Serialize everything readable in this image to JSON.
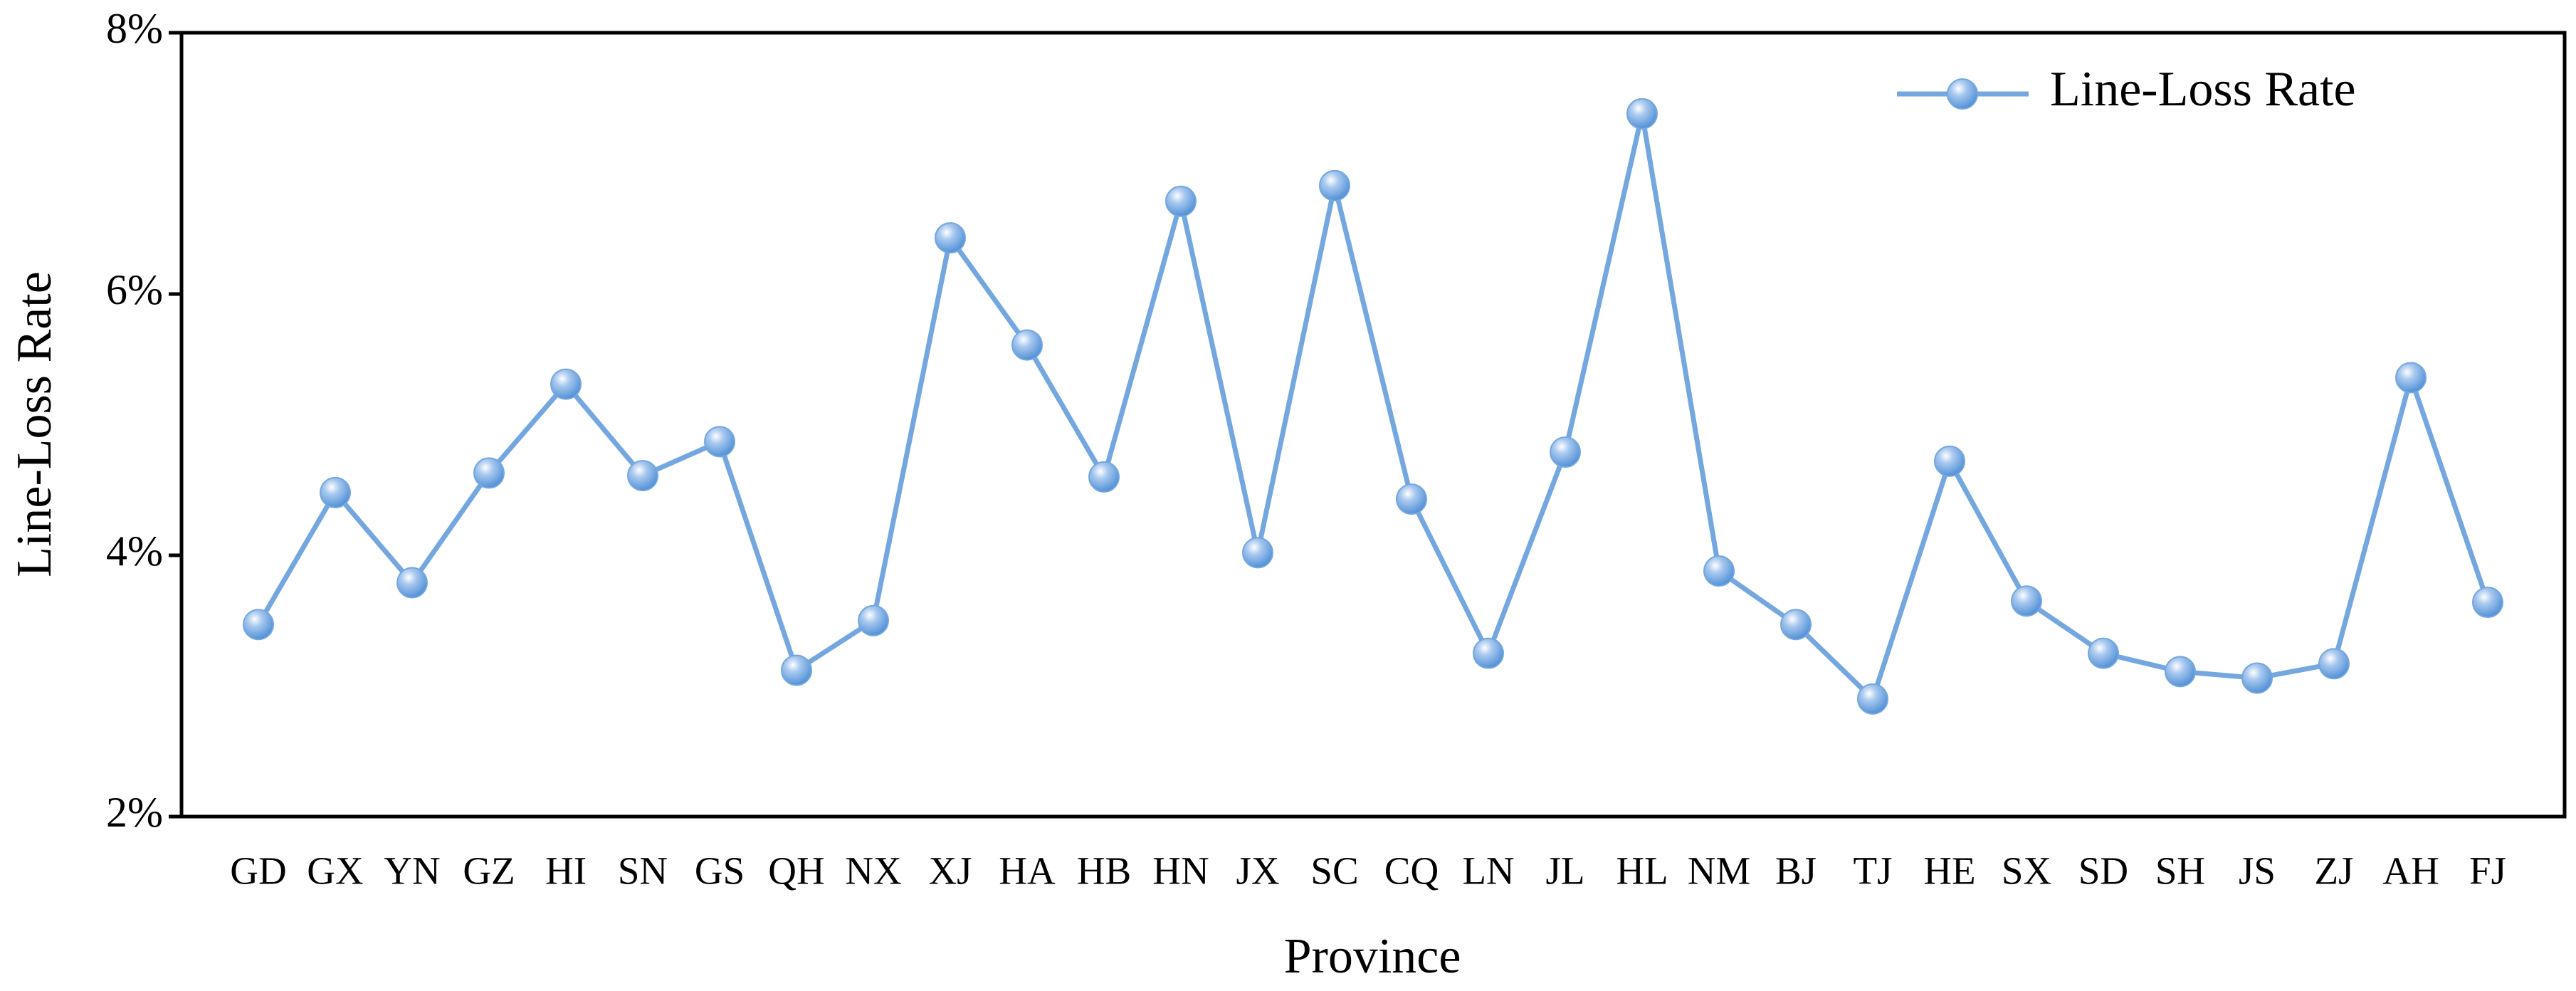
{
  "chart_data": {
    "type": "line",
    "x_label": "Province",
    "y_label": "Line-Loss Rate",
    "categories": [
      "GD",
      "GX",
      "YN",
      "GZ",
      "HI",
      "SN",
      "GS",
      "QH",
      "NX",
      "XJ",
      "HA",
      "HB",
      "HN",
      "JX",
      "SC",
      "CQ",
      "LN",
      "JL",
      "HL",
      "NM",
      "BJ",
      "TJ",
      "HE",
      "SX",
      "SD",
      "SH",
      "JS",
      "ZJ",
      "AH",
      "FJ"
    ],
    "series": [
      {
        "name": "Line-Loss Rate",
        "color": "#74a7df",
        "values": [
          3.47,
          4.48,
          3.79,
          4.63,
          5.31,
          4.61,
          4.87,
          3.12,
          3.5,
          6.43,
          5.61,
          4.6,
          6.71,
          4.02,
          6.83,
          4.43,
          3.25,
          4.79,
          7.38,
          3.88,
          3.47,
          2.9,
          4.72,
          3.65,
          3.25,
          3.11,
          3.06,
          3.17,
          5.36,
          3.64
        ]
      }
    ],
    "ylim": [
      2,
      8
    ],
    "yticks": [
      {
        "value": 2,
        "label": "2%"
      },
      {
        "value": 4,
        "label": "4%"
      },
      {
        "value": 6,
        "label": "6%"
      },
      {
        "value": 8,
        "label": "8%"
      }
    ],
    "legend": "upper right"
  }
}
